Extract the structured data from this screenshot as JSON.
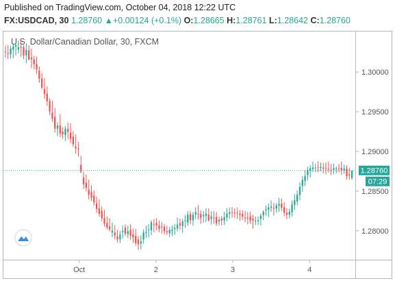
{
  "header": {
    "published": "Published on TradingView.com, October 04, 2018 12:22 UTC",
    "symbol": "FX:USDCAD, 30",
    "last": "1.28760",
    "change": "+0.00124 (+0.1%)",
    "o_label": "O:",
    "o_value": "1.28665",
    "h_label": "H:",
    "h_value": "1.28761",
    "l_label": "L:",
    "l_value": "1.28642",
    "c_label": "C:",
    "c_value": "1.28760"
  },
  "colors": {
    "up": "#26a69a",
    "down": "#ef5350",
    "price_line": "#26a69a",
    "axis": "#b2b5be"
  },
  "chart_data": {
    "type": "candlestick",
    "title": "U.S. Dollar/Canadian Dollar, 30, FXCM",
    "x_ticks": [
      "Oct",
      "2",
      "3",
      "4"
    ],
    "y_ticks": [
      "1.30000",
      "1.29500",
      "1.29000",
      "1.28500",
      "1.28000"
    ],
    "y_tick_values": [
      1.3,
      1.295,
      1.29,
      1.285,
      1.28
    ],
    "ylim": [
      1.2767,
      1.3045
    ],
    "last_price_label": "1.28760",
    "last_price": 1.2876,
    "countdown_label": "07:29",
    "candles": [
      [
        1.30259,
        1.3033,
        1.3018,
        1.30252
      ],
      [
        1.30237,
        1.30338,
        1.30163,
        1.30236
      ],
      [
        1.30225,
        1.30329,
        1.30169,
        1.30297
      ],
      [
        1.30281,
        1.30355,
        1.30172,
        1.30322
      ],
      [
        1.30319,
        1.30373,
        1.30209,
        1.30338
      ],
      [
        1.30282,
        1.30396,
        1.30236,
        1.30313
      ],
      [
        1.30316,
        1.3042,
        1.30193,
        1.30304
      ],
      [
        1.30313,
        1.30337,
        1.30162,
        1.30207
      ],
      [
        1.30211,
        1.30344,
        1.30109,
        1.30278
      ],
      [
        1.30274,
        1.30336,
        1.30147,
        1.30159
      ],
      [
        1.30181,
        1.30298,
        1.30048,
        1.30161
      ],
      [
        1.30157,
        1.30204,
        1.30034,
        1.30098
      ],
      [
        1.30101,
        1.30195,
        1.29977,
        1.30034
      ],
      [
        1.30017,
        1.30071,
        1.29864,
        1.29917
      ],
      [
        1.29919,
        1.29988,
        1.29782,
        1.29804
      ],
      [
        1.29786,
        1.29924,
        1.29665,
        1.29724
      ],
      [
        1.29727,
        1.29819,
        1.29573,
        1.29633
      ],
      [
        1.29636,
        1.2967,
        1.2946,
        1.29504
      ],
      [
        1.2949,
        1.2964,
        1.29376,
        1.29413
      ],
      [
        1.29434,
        1.2955,
        1.29237,
        1.29288
      ],
      [
        1.29286,
        1.29368,
        1.29193,
        1.29326
      ],
      [
        1.29328,
        1.29471,
        1.29181,
        1.29227
      ],
      [
        1.29247,
        1.29305,
        1.29161,
        1.29215
      ],
      [
        1.29208,
        1.2932,
        1.29131,
        1.29286
      ],
      [
        1.29284,
        1.2936,
        1.29154,
        1.29245
      ],
      [
        1.29237,
        1.29356,
        1.29108,
        1.29157
      ],
      [
        1.29187,
        1.29255,
        1.29058,
        1.29091
      ],
      [
        1.29061,
        1.29213,
        1.28971,
        1.2904
      ],
      [
        1.29034,
        1.29121,
        1.28933,
        1.29024
      ],
      [
        1.28829,
        1.28944,
        1.28724,
        1.28743
      ],
      [
        1.28669,
        1.28746,
        1.28526,
        1.28585
      ],
      [
        1.28605,
        1.28708,
        1.28494,
        1.28541
      ],
      [
        1.28515,
        1.28643,
        1.28394,
        1.28453
      ],
      [
        1.28488,
        1.28572,
        1.28376,
        1.28415
      ],
      [
        1.28444,
        1.2851,
        1.28318,
        1.28357
      ],
      [
        1.28347,
        1.28431,
        1.28225,
        1.28273
      ],
      [
        1.28285,
        1.28399,
        1.28175,
        1.28215
      ],
      [
        1.28252,
        1.28307,
        1.28118,
        1.28157
      ],
      [
        1.28161,
        1.28264,
        1.28052,
        1.2809
      ],
      [
        1.281,
        1.28181,
        1.28013,
        1.28041
      ],
      [
        1.28056,
        1.28162,
        1.2799,
        1.28018
      ],
      [
        1.27977,
        1.28103,
        1.27921,
        1.28002
      ],
      [
        1.27977,
        1.2807,
        1.27891,
        1.27939
      ],
      [
        1.27929,
        1.28013,
        1.2785,
        1.27891
      ],
      [
        1.27893,
        1.27997,
        1.27845,
        1.27953
      ],
      [
        1.27984,
        1.28067,
        1.27902,
        1.28
      ],
      [
        1.28041,
        1.28081,
        1.27932,
        1.27963
      ],
      [
        1.27958,
        1.28066,
        1.27909,
        1.27995
      ],
      [
        1.28013,
        1.28083,
        1.27887,
        1.27937
      ],
      [
        1.27956,
        1.28026,
        1.27847,
        1.27919
      ],
      [
        1.27934,
        1.28025,
        1.27813,
        1.27844
      ],
      [
        1.27893,
        1.27935,
        1.27761,
        1.27829
      ],
      [
        1.27838,
        1.27942,
        1.27766,
        1.27866
      ],
      [
        1.27889,
        1.28015,
        1.27837,
        1.27978
      ],
      [
        1.27974,
        1.28065,
        1.27907,
        1.27988
      ],
      [
        1.28013,
        1.28085,
        1.27914,
        1.28014
      ],
      [
        1.28007,
        1.28132,
        1.27945,
        1.28108
      ],
      [
        1.28084,
        1.28147,
        1.27981,
        1.2808
      ],
      [
        1.28101,
        1.28159,
        1.28002,
        1.28066
      ],
      [
        1.28068,
        1.28131,
        1.27982,
        1.28023
      ],
      [
        1.28048,
        1.28112,
        1.27965,
        1.28041
      ],
      [
        1.28051,
        1.28085,
        1.27954,
        1.27994
      ],
      [
        1.27994,
        1.28064,
        1.27946,
        1.27979
      ],
      [
        1.27967,
        1.2805,
        1.27918,
        1.28011
      ],
      [
        1.27995,
        1.28066,
        1.27932,
        1.28014
      ],
      [
        1.28021,
        1.28087,
        1.27946,
        1.28038
      ],
      [
        1.28028,
        1.28166,
        1.2799,
        1.2808
      ],
      [
        1.28097,
        1.28154,
        1.28013,
        1.28065
      ],
      [
        1.2806,
        1.28152,
        1.27975,
        1.28117
      ],
      [
        1.28122,
        1.28198,
        1.28038,
        1.28132
      ],
      [
        1.28101,
        1.28245,
        1.2806,
        1.28203
      ],
      [
        1.28209,
        1.28249,
        1.28081,
        1.28131
      ],
      [
        1.28135,
        1.28236,
        1.28061,
        1.28203
      ],
      [
        1.28205,
        1.28298,
        1.28148,
        1.28237
      ],
      [
        1.28214,
        1.28323,
        1.2814,
        1.28207
      ],
      [
        1.28213,
        1.28258,
        1.28087,
        1.28161
      ],
      [
        1.28183,
        1.2825,
        1.28101,
        1.28199
      ],
      [
        1.28187,
        1.28284,
        1.28109,
        1.28218
      ],
      [
        1.28203,
        1.28284,
        1.28117,
        1.2813
      ],
      [
        1.28147,
        1.28247,
        1.2808,
        1.28182
      ],
      [
        1.28166,
        1.28248,
        1.28088,
        1.28162
      ],
      [
        1.28175,
        1.28237,
        1.2806,
        1.28091
      ],
      [
        1.28117,
        1.28179,
        1.28066,
        1.28138
      ],
      [
        1.28155,
        1.28186,
        1.28069,
        1.28129
      ],
      [
        1.28131,
        1.28236,
        1.28073,
        1.28174
      ],
      [
        1.28166,
        1.28285,
        1.28118,
        1.28214
      ],
      [
        1.2821,
        1.28295,
        1.28151,
        1.28234
      ],
      [
        1.28234,
        1.28301,
        1.28167,
        1.28227
      ],
      [
        1.28228,
        1.28287,
        1.28161,
        1.28225
      ],
      [
        1.28229,
        1.28293,
        1.28147,
        1.28218
      ],
      [
        1.28215,
        1.28261,
        1.28125,
        1.28198
      ],
      [
        1.28213,
        1.2826,
        1.28134,
        1.28177
      ],
      [
        1.28165,
        1.2825,
        1.28104,
        1.28155
      ],
      [
        1.28164,
        1.28238,
        1.28084,
        1.28153
      ],
      [
        1.28183,
        1.28241,
        1.28085,
        1.28125
      ],
      [
        1.28155,
        1.28203,
        1.28028,
        1.28131
      ],
      [
        1.28117,
        1.28179,
        1.28074,
        1.28125
      ],
      [
        1.28121,
        1.28181,
        1.28072,
        1.28134
      ],
      [
        1.28148,
        1.28217,
        1.28066,
        1.28187
      ],
      [
        1.28195,
        1.28259,
        1.28133,
        1.2824
      ],
      [
        1.28256,
        1.28316,
        1.28192,
        1.28267
      ],
      [
        1.28266,
        1.28343,
        1.28174,
        1.28296
      ],
      [
        1.28289,
        1.28383,
        1.28238,
        1.28305
      ],
      [
        1.28289,
        1.28349,
        1.28193,
        1.28278
      ],
      [
        1.28281,
        1.28348,
        1.28227,
        1.2832
      ],
      [
        1.28315,
        1.28414,
        1.2824,
        1.28339
      ],
      [
        1.28343,
        1.28404,
        1.28248,
        1.2829
      ],
      [
        1.28298,
        1.28359,
        1.28183,
        1.2823
      ],
      [
        1.28231,
        1.28285,
        1.28148,
        1.28203
      ],
      [
        1.28203,
        1.28279,
        1.28155,
        1.2824
      ],
      [
        1.28232,
        1.28381,
        1.28178,
        1.28331
      ],
      [
        1.28327,
        1.28461,
        1.28264,
        1.28385
      ],
      [
        1.28368,
        1.28508,
        1.28318,
        1.28458
      ],
      [
        1.28451,
        1.28611,
        1.28386,
        1.28553
      ],
      [
        1.28564,
        1.28689,
        1.28491,
        1.2864
      ],
      [
        1.28627,
        1.28769,
        1.28566,
        1.28691
      ],
      [
        1.28703,
        1.28809,
        1.28633,
        1.2876
      ],
      [
        1.28761,
        1.28826,
        1.28671,
        1.28788
      ],
      [
        1.28778,
        1.2887,
        1.2874,
        1.28798
      ],
      [
        1.28795,
        1.28848,
        1.28739,
        1.28795
      ],
      [
        1.28802,
        1.28877,
        1.28736,
        1.28793
      ],
      [
        1.28789,
        1.28858,
        1.28748,
        1.28802
      ],
      [
        1.28795,
        1.28858,
        1.28724,
        1.28781
      ],
      [
        1.28787,
        1.28861,
        1.28711,
        1.28786
      ],
      [
        1.28781,
        1.28873,
        1.28734,
        1.28773
      ],
      [
        1.28768,
        1.28844,
        1.28701,
        1.28763
      ],
      [
        1.28766,
        1.28844,
        1.28711,
        1.28789
      ],
      [
        1.2878,
        1.28813,
        1.28722,
        1.28789
      ],
      [
        1.28787,
        1.28842,
        1.28733,
        1.28783
      ],
      [
        1.28792,
        1.28872,
        1.28705,
        1.28762
      ],
      [
        1.28759,
        1.28834,
        1.28717,
        1.28784
      ],
      [
        1.28784,
        1.28825,
        1.28646,
        1.28687
      ],
      [
        1.2871,
        1.28798,
        1.28644,
        1.28697
      ],
      [
        1.28665,
        1.28761,
        1.28642,
        1.2876
      ]
    ]
  }
}
